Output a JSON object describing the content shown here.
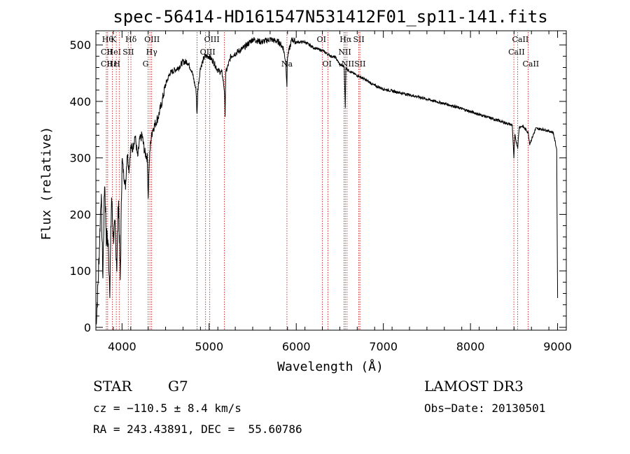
{
  "chart_data": {
    "type": "line",
    "title": "spec-56414-HD161547N531412F01_sp11-141.fits",
    "xlabel": "Wavelength (Å)",
    "ylabel": "Flux (relative)",
    "xlim": [
      3700,
      9100
    ],
    "ylim": [
      -5,
      525
    ],
    "xticks": [
      4000,
      5000,
      6000,
      7000,
      8000,
      9000
    ],
    "yticks": [
      0,
      100,
      200,
      300,
      400,
      500
    ],
    "series": [
      {
        "name": "flux",
        "x": [
          3700,
          3720,
          3740,
          3760,
          3780,
          3800,
          3820,
          3840,
          3860,
          3880,
          3900,
          3920,
          3940,
          3960,
          3980,
          4000,
          4020,
          4040,
          4060,
          4080,
          4100,
          4120,
          4150,
          4180,
          4200,
          4230,
          4260,
          4290,
          4300,
          4310,
          4330,
          4350,
          4380,
          4420,
          4460,
          4500,
          4550,
          4600,
          4650,
          4700,
          4750,
          4800,
          4850,
          4861,
          4870,
          4900,
          4950,
          5000,
          5050,
          5100,
          5150,
          5175,
          5183,
          5190,
          5250,
          5300,
          5400,
          5500,
          5600,
          5700,
          5800,
          5850,
          5880,
          5893,
          5900,
          5950,
          6000,
          6100,
          6200,
          6300,
          6350,
          6400,
          6450,
          6500,
          6550,
          6563,
          6570,
          6600,
          6650,
          6700,
          6800,
          6900,
          7000,
          7200,
          7400,
          7600,
          7800,
          8000,
          8200,
          8400,
          8480,
          8498,
          8510,
          8542,
          8560,
          8600,
          8662,
          8680,
          8750,
          8850,
          8950,
          8990,
          9000
        ],
        "values": [
          5,
          60,
          140,
          240,
          90,
          260,
          160,
          150,
          70,
          230,
          160,
          175,
          110,
          230,
          80,
          300,
          270,
          250,
          310,
          280,
          320,
          315,
          340,
          300,
          330,
          340,
          310,
          300,
          230,
          285,
          330,
          350,
          360,
          375,
          400,
          430,
          450,
          455,
          460,
          470,
          470,
          455,
          420,
          375,
          420,
          460,
          480,
          480,
          470,
          455,
          450,
          420,
          378,
          450,
          480,
          485,
          495,
          510,
          505,
          510,
          505,
          495,
          470,
          428,
          480,
          510,
          505,
          505,
          495,
          490,
          485,
          480,
          478,
          465,
          462,
          388,
          460,
          455,
          450,
          446,
          438,
          428,
          422,
          415,
          408,
          400,
          392,
          382,
          372,
          362,
          358,
          300,
          340,
          318,
          355,
          356,
          345,
          325,
          352,
          350,
          345,
          315,
          52
        ]
      }
    ],
    "lines": [
      {
        "wl": 3820,
        "labels": [
          "",
          "CII",
          "CII"
        ]
      },
      {
        "wl": 3835,
        "labels": [
          "Hθ",
          "",
          ""
        ]
      },
      {
        "wl": 3889,
        "labels": [
          "",
          "HeI",
          "Hε"
        ]
      },
      {
        "wl": 3934,
        "labels": [
          "K",
          "",
          ""
        ]
      },
      {
        "wl": 3968,
        "labels": [
          "",
          "",
          "H"
        ]
      },
      {
        "wl": 4072,
        "labels": [
          "",
          "SII",
          ""
        ]
      },
      {
        "wl": 4102,
        "labels": [
          "Hδ",
          "",
          ""
        ]
      },
      {
        "wl": 4300,
        "labels": [
          "",
          "",
          "G"
        ]
      },
      {
        "wl": 4320,
        "labels": [
          "OIII",
          "",
          ""
        ]
      },
      {
        "wl": 4340,
        "labels": [
          "",
          "Hγ",
          ""
        ]
      },
      {
        "wl": 4861,
        "labels": [
          "",
          "",
          ""
        ]
      },
      {
        "wl": 4959,
        "labels": [
          "",
          "OIII",
          ""
        ]
      },
      {
        "wl": 5007,
        "labels": [
          "OIII",
          "",
          ""
        ]
      },
      {
        "wl": 5175,
        "labels": [
          "",
          "",
          ""
        ]
      },
      {
        "wl": 5893,
        "labels": [
          "",
          "",
          "Na"
        ]
      },
      {
        "wl": 6300,
        "labels": [
          "OI",
          "",
          ""
        ]
      },
      {
        "wl": 6364,
        "labels": [
          "",
          "",
          "OI"
        ]
      },
      {
        "wl": 6548,
        "labels": [
          "",
          "NII",
          ""
        ]
      },
      {
        "wl": 6563,
        "labels": [
          "Hα",
          "",
          ""
        ]
      },
      {
        "wl": 6583,
        "labels": [
          "",
          "",
          "NII"
        ]
      },
      {
        "wl": 6717,
        "labels": [
          "SII",
          "",
          ""
        ]
      },
      {
        "wl": 6731,
        "labels": [
          "",
          "",
          "SII"
        ]
      },
      {
        "wl": 8498,
        "labels": [
          "",
          "CaII",
          ""
        ]
      },
      {
        "wl": 8542,
        "labels": [
          "CaII",
          "",
          ""
        ]
      },
      {
        "wl": 8662,
        "labels": [
          "",
          "",
          "CaII"
        ]
      }
    ]
  },
  "info": {
    "class": "STAR",
    "subclass": "G7",
    "survey": "LAMOST DR3",
    "cz": "cz = −110.5 ± 8.4 km/s",
    "obs_date": "Obs−Date: 20130501",
    "coords": "RA = 243.43891, DEC =  55.60786"
  }
}
